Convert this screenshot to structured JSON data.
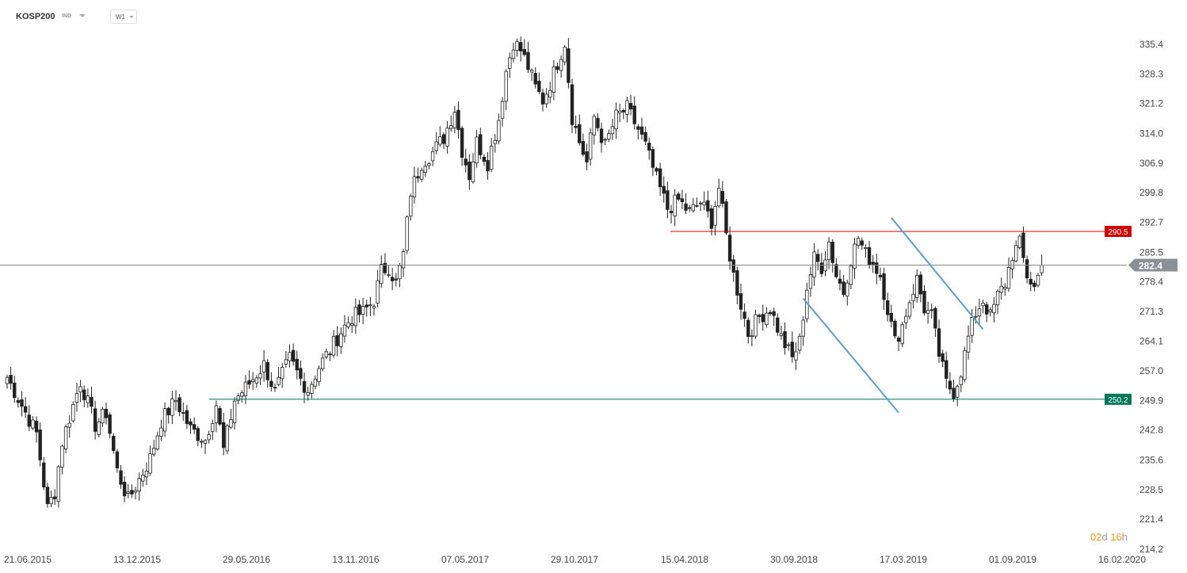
{
  "header": {
    "symbol": "KOSP200",
    "instrument_type": "IND",
    "timeframe": "W1"
  },
  "timer": {
    "days": "02",
    "days_unit": "d",
    "hours": "16",
    "hours_unit": "h"
  },
  "colors": {
    "bull_body": "#ffffff",
    "bear_body": "#222222",
    "wick": "#222222",
    "resistance": "#d40000",
    "support": "#00785a",
    "channel": "#5a9ec9",
    "price_line": "#888888",
    "price_tag": "#8a9096"
  },
  "chart_data": {
    "type": "candlestick",
    "ylim": [
      214.2,
      343.0
    ],
    "y_ticks": [
      "335.4",
      "328.3",
      "321.2",
      "314.0",
      "306.9",
      "299.8",
      "292.7",
      "285.5",
      "278.4",
      "271.3",
      "264.1",
      "257.0",
      "249.9",
      "242.8",
      "235.6",
      "228.5",
      "221.4",
      "214.2"
    ],
    "x_ticks": [
      "21.06.2015",
      "13.12.2015",
      "29.05.2016",
      "13.11.2016",
      "07.05.2017",
      "29.10.2017",
      "15.04.2018",
      "30.09.2018",
      "17.03.2019",
      "01.09.2019",
      "16.02.2020"
    ],
    "current_price": {
      "label": "282.4",
      "value": 282.4
    },
    "levels": [
      {
        "label": "290.5",
        "value": 290.5,
        "kind": "resistance"
      },
      {
        "label": "250.2",
        "value": 250.2,
        "kind": "support"
      }
    ],
    "channel": {
      "upper": [
        {
          "week": 241,
          "value": 293.8
        },
        {
          "week": 266,
          "value": 267.0
        }
      ],
      "lower": [
        {
          "week": 217,
          "value": 274.4
        },
        {
          "week": 243,
          "value": 247.0
        }
      ]
    },
    "anchors": [
      [
        0,
        255.5
      ],
      [
        8,
        242.0
      ],
      [
        11,
        224.0
      ],
      [
        13,
        228.0
      ],
      [
        15,
        240.0
      ],
      [
        20,
        254.5
      ],
      [
        24,
        244.0
      ],
      [
        27,
        247.0
      ],
      [
        30,
        233.0
      ],
      [
        33,
        226.0
      ],
      [
        36,
        231.0
      ],
      [
        39,
        236.0
      ],
      [
        42,
        245.0
      ],
      [
        46,
        250.0
      ],
      [
        50,
        243.0
      ],
      [
        54,
        240.5
      ],
      [
        57,
        249.0
      ],
      [
        59,
        238.0
      ],
      [
        62,
        250.0
      ],
      [
        66,
        254.0
      ],
      [
        70,
        258.5
      ],
      [
        73,
        252.0
      ],
      [
        77,
        260.0
      ],
      [
        80,
        255.0
      ],
      [
        82,
        252.5
      ],
      [
        85,
        258.0
      ],
      [
        88,
        262.0
      ],
      [
        91,
        266.5
      ],
      [
        94,
        270.0
      ],
      [
        97,
        271.0
      ],
      [
        100,
        274.0
      ],
      [
        102,
        281.0
      ],
      [
        104,
        282.0
      ],
      [
        106,
        278.0
      ],
      [
        108,
        285.0
      ],
      [
        110,
        300.0
      ],
      [
        113,
        307.0
      ],
      [
        116,
        309.5
      ],
      [
        119,
        313.0
      ],
      [
        122,
        320.0
      ],
      [
        124,
        310.0
      ],
      [
        126,
        304.0
      ],
      [
        128,
        312.0
      ],
      [
        131,
        307.0
      ],
      [
        134,
        317.5
      ],
      [
        136,
        329.0
      ],
      [
        138,
        336.0
      ],
      [
        140,
        334.0
      ],
      [
        142,
        330.0
      ],
      [
        144,
        325.0
      ],
      [
        146,
        322.0
      ],
      [
        148,
        326.0
      ],
      [
        150,
        331.0
      ],
      [
        152,
        336.0
      ],
      [
        154,
        318.0
      ],
      [
        156,
        312.0
      ],
      [
        158,
        307.0
      ],
      [
        160,
        318.0
      ],
      [
        163,
        311.0
      ],
      [
        166,
        318.0
      ],
      [
        169,
        320.0
      ],
      [
        172,
        315.0
      ],
      [
        174,
        311.0
      ],
      [
        177,
        303.0
      ],
      [
        180,
        296.0
      ],
      [
        183,
        298.0
      ],
      [
        186,
        295.0
      ],
      [
        189,
        297.5
      ],
      [
        192,
        293.0
      ],
      [
        194,
        301.0
      ],
      [
        196,
        289.5
      ],
      [
        198,
        280.0
      ],
      [
        200,
        273.0
      ],
      [
        202,
        266.0
      ],
      [
        205,
        270.0
      ],
      [
        208,
        272.0
      ],
      [
        211,
        265.0
      ],
      [
        214,
        260.0
      ],
      [
        216,
        264.0
      ],
      [
        218,
        277.0
      ],
      [
        220,
        284.0
      ],
      [
        222,
        282.0
      ],
      [
        224,
        288.0
      ],
      [
        226,
        280.0
      ],
      [
        228,
        276.0
      ],
      [
        230,
        284.0
      ],
      [
        232,
        289.0
      ],
      [
        234,
        285.0
      ],
      [
        236,
        283.0
      ],
      [
        238,
        280.0
      ],
      [
        240,
        272.0
      ],
      [
        242,
        264.0
      ],
      [
        244,
        268.0
      ],
      [
        246,
        274.0
      ],
      [
        248,
        279.0
      ],
      [
        250,
        272.0
      ],
      [
        252,
        270.0
      ],
      [
        254,
        261.0
      ],
      [
        256,
        254.0
      ],
      [
        258,
        252.0
      ],
      [
        260,
        257.0
      ],
      [
        262,
        265.0
      ],
      [
        264,
        271.0
      ],
      [
        266,
        274.0
      ],
      [
        268,
        270.0
      ],
      [
        270,
        275.0
      ],
      [
        272,
        278.0
      ],
      [
        274,
        285.0
      ],
      [
        276,
        287.5
      ],
      [
        278,
        280.0
      ],
      [
        280,
        277.0
      ],
      [
        282,
        282.4
      ]
    ]
  }
}
